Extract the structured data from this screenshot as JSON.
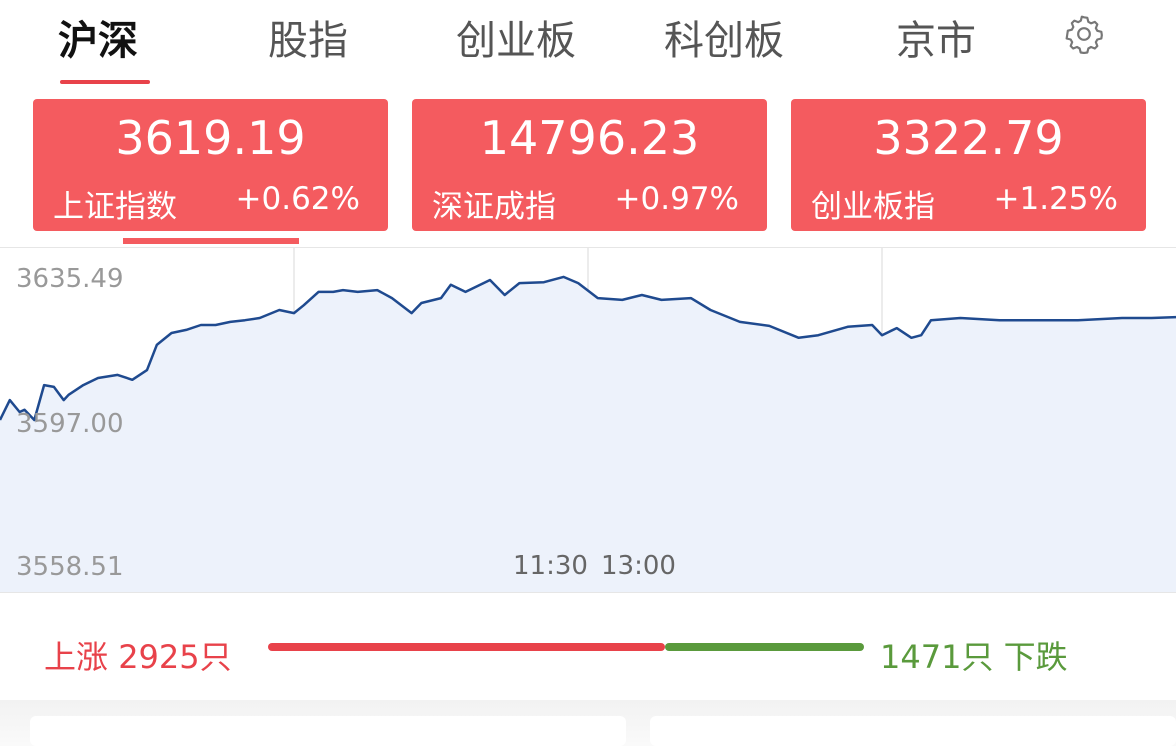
{
  "tabs": [
    {
      "label": "沪深",
      "active": true
    },
    {
      "label": "股指"
    },
    {
      "label": "创业板"
    },
    {
      "label": "科创板"
    },
    {
      "label": "京市"
    }
  ],
  "settings_icon": "gear-icon",
  "indices": [
    {
      "value": "3619.19",
      "name": "上证指数",
      "change": "+0.62%",
      "selected": true
    },
    {
      "value": "14796.23",
      "name": "深证成指",
      "change": "+0.97%"
    },
    {
      "value": "3322.79",
      "name": "创业板指",
      "change": "+1.25%"
    }
  ],
  "colors": {
    "up": "#e8424a",
    "down": "#5a9a3c",
    "card": "#f45b5f",
    "line": "#1f4a8f",
    "fill": "#edf2fb"
  },
  "chart_data": {
    "type": "area",
    "y_labels": {
      "high": "3635.49",
      "prev_close": "3597.00",
      "low": "3558.51"
    },
    "ylim": [
      3558.51,
      3635.49
    ],
    "x_labels": [
      "11:30",
      "13:00"
    ],
    "x": [
      "09:30",
      "09:32",
      "09:34",
      "09:35",
      "09:37",
      "09:39",
      "09:41",
      "09:43",
      "09:44",
      "09:47",
      "09:50",
      "09:54",
      "09:57",
      "10:00",
      "10:02",
      "10:05",
      "10:08",
      "10:11",
      "10:14",
      "10:17",
      "10:20",
      "10:23",
      "10:27",
      "10:30",
      "10:32",
      "10:35",
      "10:38",
      "10:40",
      "10:43",
      "10:47",
      "10:50",
      "10:54",
      "10:56",
      "11:00",
      "11:02",
      "11:05",
      "11:10",
      "11:13",
      "11:16",
      "11:21",
      "11:25",
      "11:28",
      "13:02",
      "13:07",
      "13:11",
      "13:15",
      "13:21",
      "13:25",
      "13:31",
      "13:37",
      "13:43",
      "13:47",
      "13:53",
      "13:58",
      "14:00",
      "14:03",
      "14:06",
      "14:08",
      "14:10",
      "14:16",
      "14:24",
      "14:32",
      "14:40",
      "14:49",
      "14:55",
      "15:00"
    ],
    "values": [
      3597.0,
      3601.5,
      3598.8,
      3599.3,
      3597.0,
      3604.9,
      3604.5,
      3601.5,
      3602.7,
      3604.9,
      3606.5,
      3607.2,
      3606.1,
      3608.3,
      3614.0,
      3616.7,
      3617.4,
      3618.5,
      3618.5,
      3619.2,
      3619.6,
      3620.1,
      3621.9,
      3621.2,
      3623.0,
      3626.0,
      3626.0,
      3626.4,
      3626.0,
      3626.4,
      3624.6,
      3621.2,
      3623.5,
      3624.6,
      3627.6,
      3626.0,
      3628.7,
      3625.3,
      3628.0,
      3628.2,
      3629.4,
      3628.0,
      3624.6,
      3624.2,
      3625.3,
      3624.2,
      3624.6,
      3621.9,
      3619.2,
      3618.3,
      3615.6,
      3616.2,
      3618.1,
      3618.5,
      3616.2,
      3617.8,
      3615.6,
      3616.2,
      3619.6,
      3620.1,
      3619.6,
      3619.6,
      3619.6,
      3620.1,
      3620.1,
      3620.3
    ],
    "grid": true
  },
  "breadth": {
    "up_label": "上涨",
    "up_count": "2925只",
    "down_count": "1471只",
    "down_label": "下跌",
    "up": 2925,
    "down": 1471
  }
}
